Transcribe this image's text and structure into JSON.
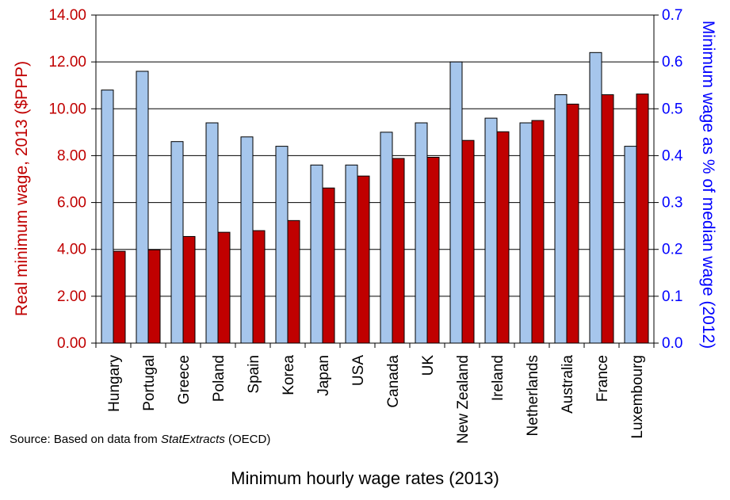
{
  "chart_data": {
    "type": "bar",
    "xlabel": "Minimum hourly wage rates (2013)",
    "categories": [
      "Hungary",
      "Portugal",
      "Greece",
      "Poland",
      "Spain",
      "Korea",
      "Japan",
      "USA",
      "Canada",
      "UK",
      "New Zealand",
      "Ireland",
      "Netherlands",
      "Australia",
      "France",
      "Luxembourg"
    ],
    "series": [
      {
        "name": "Minimum wage as % of median wage (2012)",
        "axis": "right",
        "color": "#a6c6ec",
        "values": [
          0.54,
          0.58,
          0.43,
          0.47,
          0.44,
          0.42,
          0.38,
          0.38,
          0.45,
          0.47,
          0.6,
          0.48,
          0.47,
          0.53,
          0.62,
          0.42
        ]
      },
      {
        "name": "Real minimum wage, 2013 ($PPP)",
        "axis": "left",
        "color": "#c00000",
        "values": [
          3.92,
          3.98,
          4.55,
          4.73,
          4.8,
          5.23,
          6.62,
          7.13,
          7.88,
          7.93,
          8.65,
          9.02,
          9.5,
          10.2,
          10.6,
          10.63
        ]
      }
    ],
    "left_axis": {
      "label": "Real minimum wage, 2013 ($PPP)",
      "color": "#c00000",
      "ylim": [
        0,
        14
      ],
      "ticks": [
        "0.00",
        "2.00",
        "4.00",
        "6.00",
        "8.00",
        "10.00",
        "12.00",
        "14.00"
      ]
    },
    "right_axis": {
      "label": "Minimum wage as % of median wage (2012)",
      "color": "#0000ff",
      "ylim": [
        0,
        0.7
      ],
      "ticks": [
        "0.0",
        "0.1",
        "0.2",
        "0.3",
        "0.4",
        "0.5",
        "0.6",
        "0.7"
      ]
    },
    "grid": true
  },
  "source": {
    "prefix": "Source: Based on data from ",
    "italic": "StatExtracts",
    "suffix": " (OECD)"
  }
}
